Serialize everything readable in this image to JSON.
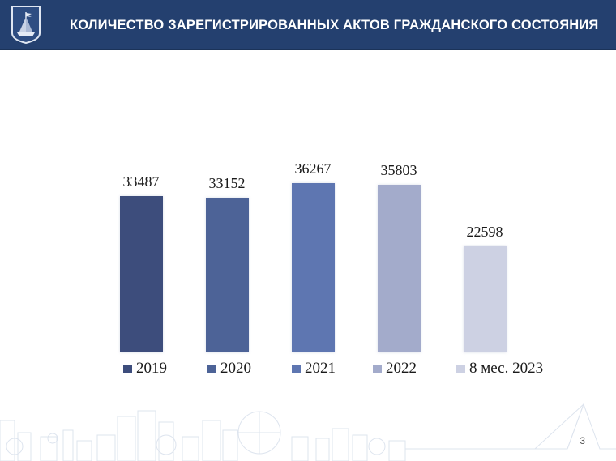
{
  "header": {
    "title": "КОЛИЧЕСТВО ЗАРЕГИСТРИРОВАННЫХ АКТОВ ГРАЖДАНСКОГО СОСТОЯНИЯ",
    "logo_icon": "coat-of-arms-ship-icon"
  },
  "chart_data": {
    "type": "bar",
    "title": "КОЛИЧЕСТВО ЗАРЕГИСТРИРОВАННЫХ АКТОВ ГРАЖДАНСКОГО СОСТОЯНИЯ",
    "categories": [
      "2019",
      "2020",
      "2021",
      "2022",
      "8 мес. 2023"
    ],
    "values": [
      33487,
      33152,
      36267,
      35803,
      22598
    ],
    "labels": [
      "33487",
      "33152",
      "36267",
      "35803",
      "22598"
    ],
    "colors": [
      "#3d4d7c",
      "#4d6397",
      "#5e76b1",
      "#a3abcb",
      "#cdd1e3"
    ],
    "xlabel": "",
    "ylabel": "",
    "grid": false,
    "legend_position": "bottom",
    "ylim": [
      0,
      40000
    ]
  },
  "legend": {
    "items": [
      {
        "label": "2019",
        "color": "#3d4d7c"
      },
      {
        "label": "2020",
        "color": "#4d6397"
      },
      {
        "label": "2021",
        "color": "#5e76b1"
      },
      {
        "label": "2022",
        "color": "#a3abcb"
      },
      {
        "label": "8 мес. 2023",
        "color": "#cdd1e3"
      }
    ]
  },
  "footer": {
    "page_number": "3"
  }
}
